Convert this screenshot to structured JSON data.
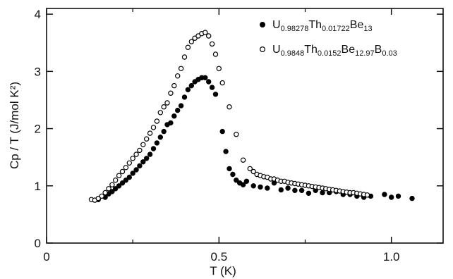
{
  "chart_data": {
    "type": "scatter",
    "xlabel": "T (K)",
    "ylabel": "Cp / T (J/mol K²)",
    "xlim": [
      0,
      1.15
    ],
    "ylim": [
      0,
      4.1
    ],
    "x_ticks": [
      {
        "value": 0,
        "label": "0"
      },
      {
        "value": 0.5,
        "label": "0.5"
      },
      {
        "value": 1.0,
        "label": "1.0"
      }
    ],
    "x_minor_ticks": [
      0.25,
      0.75
    ],
    "y_ticks": [
      {
        "value": 0,
        "label": "0"
      },
      {
        "value": 1,
        "label": "1"
      },
      {
        "value": 2,
        "label": "2"
      },
      {
        "value": 3,
        "label": "3"
      },
      {
        "value": 4,
        "label": "4"
      }
    ],
    "grid": false,
    "legend_position": "top-right",
    "series": [
      {
        "name": "U0.98278Th0.01722Be13",
        "legend": {
          "segments": [
            {
              "text": "U",
              "sub": false
            },
            {
              "text": "0.98278",
              "sub": true
            },
            {
              "text": "Th",
              "sub": false
            },
            {
              "text": "0.01722",
              "sub": true
            },
            {
              "text": "Be",
              "sub": false
            },
            {
              "text": "13",
              "sub": true
            }
          ]
        },
        "marker": "filled-circle",
        "color": "#000000",
        "points": [
          [
            0.15,
            0.76
          ],
          [
            0.17,
            0.8
          ],
          [
            0.18,
            0.86
          ],
          [
            0.19,
            0.9
          ],
          [
            0.2,
            0.95
          ],
          [
            0.21,
            1.0
          ],
          [
            0.22,
            1.05
          ],
          [
            0.23,
            1.1
          ],
          [
            0.24,
            1.15
          ],
          [
            0.25,
            1.22
          ],
          [
            0.26,
            1.28
          ],
          [
            0.27,
            1.35
          ],
          [
            0.28,
            1.42
          ],
          [
            0.29,
            1.48
          ],
          [
            0.3,
            1.55
          ],
          [
            0.31,
            1.65
          ],
          [
            0.32,
            1.75
          ],
          [
            0.33,
            1.85
          ],
          [
            0.34,
            1.95
          ],
          [
            0.35,
            2.07
          ],
          [
            0.36,
            2.1
          ],
          [
            0.37,
            2.22
          ],
          [
            0.38,
            2.32
          ],
          [
            0.39,
            2.4
          ],
          [
            0.4,
            2.55
          ],
          [
            0.41,
            2.68
          ],
          [
            0.42,
            2.75
          ],
          [
            0.43,
            2.82
          ],
          [
            0.44,
            2.86
          ],
          [
            0.45,
            2.89
          ],
          [
            0.46,
            2.89
          ],
          [
            0.47,
            2.82
          ],
          [
            0.48,
            2.72
          ],
          [
            0.49,
            2.6
          ],
          [
            0.51,
            1.95
          ],
          [
            0.52,
            1.6
          ],
          [
            0.53,
            1.3
          ],
          [
            0.54,
            1.2
          ],
          [
            0.55,
            1.1
          ],
          [
            0.56,
            1.05
          ],
          [
            0.57,
            1.02
          ],
          [
            0.58,
            1.08
          ],
          [
            0.6,
            1.0
          ],
          [
            0.62,
            0.98
          ],
          [
            0.64,
            0.96
          ],
          [
            0.66,
            1.05
          ],
          [
            0.68,
            0.93
          ],
          [
            0.7,
            0.96
          ],
          [
            0.72,
            0.92
          ],
          [
            0.74,
            0.92
          ],
          [
            0.76,
            0.87
          ],
          [
            0.78,
            0.92
          ],
          [
            0.8,
            0.88
          ],
          [
            0.82,
            0.88
          ],
          [
            0.84,
            0.9
          ],
          [
            0.86,
            0.85
          ],
          [
            0.88,
            0.85
          ],
          [
            0.9,
            0.82
          ],
          [
            0.92,
            0.8
          ],
          [
            0.94,
            0.82
          ],
          [
            0.98,
            0.85
          ],
          [
            1.0,
            0.8
          ],
          [
            1.02,
            0.82
          ],
          [
            1.06,
            0.78
          ]
        ]
      },
      {
        "name": "U0.9848Th0.0152Be12.97B0.03",
        "legend": {
          "segments": [
            {
              "text": "U",
              "sub": false
            },
            {
              "text": "0.9848",
              "sub": true
            },
            {
              "text": "Th",
              "sub": false
            },
            {
              "text": "0.0152",
              "sub": true
            },
            {
              "text": "Be",
              "sub": false
            },
            {
              "text": "12.97",
              "sub": true
            },
            {
              "text": "B",
              "sub": false
            },
            {
              "text": "0.03",
              "sub": true
            }
          ]
        },
        "marker": "open-circle",
        "color": "#000000",
        "points": [
          [
            0.13,
            0.76
          ],
          [
            0.14,
            0.75
          ],
          [
            0.15,
            0.78
          ],
          [
            0.16,
            0.82
          ],
          [
            0.17,
            0.88
          ],
          [
            0.18,
            0.95
          ],
          [
            0.19,
            1.02
          ],
          [
            0.2,
            1.1
          ],
          [
            0.21,
            1.18
          ],
          [
            0.22,
            1.25
          ],
          [
            0.23,
            1.32
          ],
          [
            0.24,
            1.4
          ],
          [
            0.25,
            1.48
          ],
          [
            0.26,
            1.55
          ],
          [
            0.27,
            1.62
          ],
          [
            0.28,
            1.72
          ],
          [
            0.29,
            1.82
          ],
          [
            0.3,
            1.92
          ],
          [
            0.31,
            2.02
          ],
          [
            0.32,
            2.13
          ],
          [
            0.33,
            2.28
          ],
          [
            0.34,
            2.38
          ],
          [
            0.35,
            2.45
          ],
          [
            0.36,
            2.62
          ],
          [
            0.37,
            2.75
          ],
          [
            0.38,
            2.92
          ],
          [
            0.39,
            3.05
          ],
          [
            0.4,
            3.25
          ],
          [
            0.41,
            3.42
          ],
          [
            0.42,
            3.52
          ],
          [
            0.43,
            3.58
          ],
          [
            0.44,
            3.62
          ],
          [
            0.45,
            3.66
          ],
          [
            0.46,
            3.68
          ],
          [
            0.47,
            3.62
          ],
          [
            0.48,
            3.48
          ],
          [
            0.49,
            3.3
          ],
          [
            0.5,
            3.05
          ],
          [
            0.51,
            2.8
          ],
          [
            0.53,
            2.38
          ],
          [
            0.55,
            1.9
          ],
          [
            0.57,
            1.45
          ],
          [
            0.59,
            1.3
          ],
          [
            0.6,
            1.25
          ],
          [
            0.61,
            1.2
          ],
          [
            0.62,
            1.18
          ],
          [
            0.63,
            1.16
          ],
          [
            0.64,
            1.15
          ],
          [
            0.65,
            1.12
          ],
          [
            0.66,
            1.12
          ],
          [
            0.67,
            1.1
          ],
          [
            0.68,
            1.08
          ],
          [
            0.69,
            1.08
          ],
          [
            0.7,
            1.06
          ],
          [
            0.71,
            1.05
          ],
          [
            0.72,
            1.04
          ],
          [
            0.73,
            1.03
          ],
          [
            0.74,
            1.02
          ],
          [
            0.75,
            1.01
          ],
          [
            0.76,
            1.0
          ],
          [
            0.77,
            0.99
          ],
          [
            0.78,
            0.98
          ],
          [
            0.79,
            0.97
          ],
          [
            0.8,
            0.96
          ],
          [
            0.81,
            0.95
          ],
          [
            0.82,
            0.94
          ],
          [
            0.83,
            0.93
          ],
          [
            0.84,
            0.92
          ],
          [
            0.85,
            0.91
          ],
          [
            0.86,
            0.9
          ],
          [
            0.87,
            0.89
          ],
          [
            0.88,
            0.88
          ],
          [
            0.89,
            0.88
          ],
          [
            0.9,
            0.87
          ],
          [
            0.91,
            0.86
          ],
          [
            0.92,
            0.85
          ],
          [
            0.93,
            0.84
          ]
        ]
      }
    ]
  }
}
